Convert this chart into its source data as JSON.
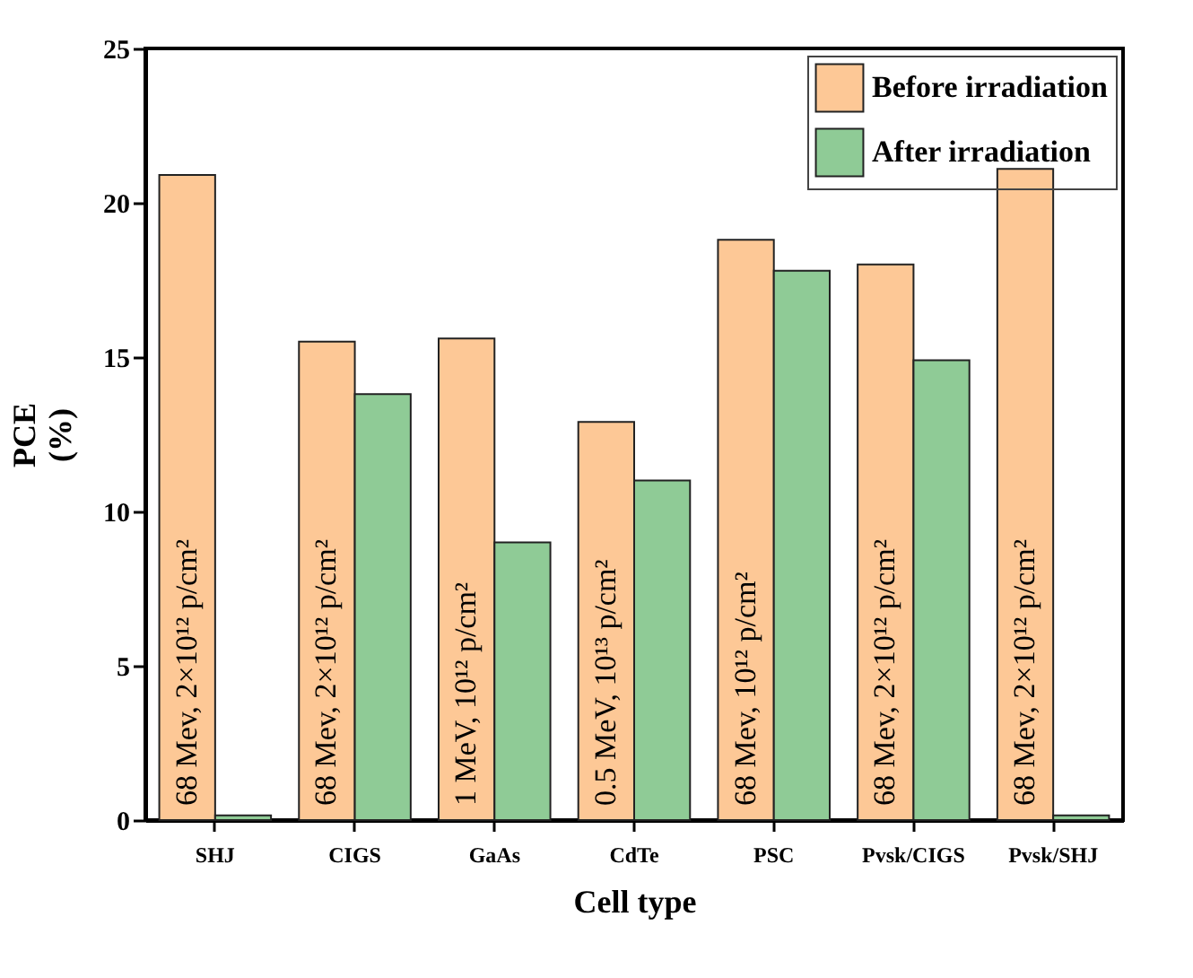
{
  "chart_data": {
    "type": "bar",
    "xlabel": "Cell type",
    "ylabel": "PCE\n(%)",
    "categories": [
      "SHJ",
      "CIGS",
      "GaAs",
      "CdTe",
      "PSC",
      "Pvsk/CIGS",
      "Pvsk/SHJ"
    ],
    "series": [
      {
        "name": "Before irradiation",
        "color": "#fdc896",
        "values": [
          20.9,
          15.5,
          15.6,
          12.9,
          18.8,
          18.0,
          21.1
        ]
      },
      {
        "name": "After irradiation",
        "color": "#8fcb96",
        "values": [
          0.15,
          13.8,
          9.0,
          11.0,
          17.8,
          14.9,
          0.15
        ]
      }
    ],
    "ylim": [
      0,
      25
    ],
    "yticks": [
      0,
      5,
      10,
      15,
      20,
      25
    ],
    "legend": "top right",
    "grid": false,
    "annotations": [
      {
        "text": "68 Mev, 2×10¹² p/cm²",
        "x": "SHJ",
        "y": 0
      },
      {
        "text": "68 Mev, 2×10¹² p/cm²",
        "x": "CIGS",
        "y": 0
      },
      {
        "text": "1 MeV, 10¹² p/cm²",
        "x": "GaAs",
        "y": 0
      },
      {
        "text": "0.5 MeV, 10¹³ p/cm²",
        "x": "CdTe",
        "y": 0
      },
      {
        "text": "68 Mev, 10¹² p/cm²",
        "x": "PSC",
        "y": 0
      },
      {
        "text": "68 Mev, 2×10¹² p/cm²",
        "x": "Pvsk/CIGS",
        "y": 0
      },
      {
        "text": "68 Mev, 2×10¹² p/cm²",
        "x": "Pvsk/SHJ",
        "y": 0
      }
    ]
  }
}
